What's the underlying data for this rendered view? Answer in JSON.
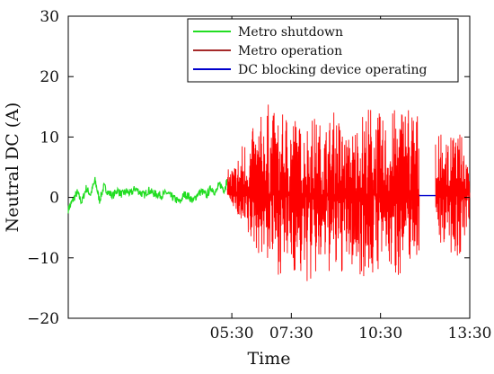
{
  "chart_data": {
    "type": "line",
    "xlabel": "Time",
    "ylabel": "Neutral DC (A)",
    "x_unit": "hours",
    "xlim": [
      0.0,
      13.5
    ],
    "ylim": [
      -20,
      30
    ],
    "x_ticks": [
      {
        "value": 5.5,
        "label": "05:30"
      },
      {
        "value": 7.5,
        "label": "07:30"
      },
      {
        "value": 10.5,
        "label": "10:30"
      },
      {
        "value": 13.5,
        "label": "13:30"
      }
    ],
    "y_ticks": [
      {
        "value": -20,
        "label": "−20"
      },
      {
        "value": -10,
        "label": "−10"
      },
      {
        "value": 0,
        "label": "0"
      },
      {
        "value": 10,
        "label": "10"
      },
      {
        "value": 20,
        "label": "20"
      },
      {
        "value": 30,
        "label": "30"
      }
    ],
    "grid": false,
    "legend": {
      "position": "top-right"
    },
    "series": [
      {
        "name": "Metro shutdown",
        "color": "#22dd22",
        "x": [
          0.0,
          0.15,
          0.3,
          0.45,
          0.6,
          0.75,
          0.9,
          1.05,
          1.2,
          1.35,
          1.5,
          1.65,
          1.8,
          1.95,
          2.1,
          2.25,
          2.4,
          2.55,
          2.7,
          2.85,
          3.0,
          3.15,
          3.3,
          3.45,
          3.6,
          3.75,
          3.9,
          4.05,
          4.2,
          4.35,
          4.5,
          4.65,
          4.8,
          4.95,
          5.1,
          5.25,
          5.35
        ],
        "y": [
          -2.0,
          -0.5,
          0.8,
          -0.8,
          1.5,
          0.5,
          2.8,
          -0.5,
          1.8,
          0.8,
          0.3,
          1.2,
          0.5,
          1.0,
          0.6,
          1.5,
          0.9,
          0.4,
          1.2,
          0.7,
          0.5,
          0.3,
          0.8,
          0.2,
          -0.3,
          -0.8,
          0.5,
          0.2,
          -0.6,
          0.6,
          1.0,
          0.3,
          1.6,
          0.8,
          2.2,
          1.2,
          3.0
        ]
      },
      {
        "name": "Metro operation",
        "color": "#ff0000",
        "segments": [
          {
            "x_start": 5.35,
            "x_end": 11.8
          },
          {
            "x_start": 12.35,
            "x_end": 13.5
          }
        ],
        "envelope": {
          "x": [
            5.35,
            5.6,
            5.9,
            6.3,
            6.7,
            7.1,
            7.5,
            7.8,
            8.2,
            8.6,
            9.0,
            9.4,
            9.8,
            10.2,
            10.6,
            11.0,
            11.4,
            11.8,
            12.35,
            12.7,
            13.1,
            13.5
          ],
          "max": [
            4.5,
            6,
            10,
            12,
            16,
            13,
            16,
            12,
            14,
            12,
            15,
            10,
            14,
            16,
            13,
            15,
            17,
            14,
            11,
            10,
            11,
            9
          ],
          "min": [
            0.5,
            -2,
            -7,
            -9,
            -11,
            -13,
            -12,
            -14,
            -15,
            -12,
            -14,
            -12,
            -13,
            -14,
            -11,
            -14,
            -11,
            -10,
            -6,
            -9,
            -10,
            -8
          ]
        }
      },
      {
        "name": "DC blocking device operating",
        "color": "#0000cc",
        "x": [
          11.8,
          12.35
        ],
        "y": [
          0.3,
          0.3
        ]
      }
    ]
  }
}
